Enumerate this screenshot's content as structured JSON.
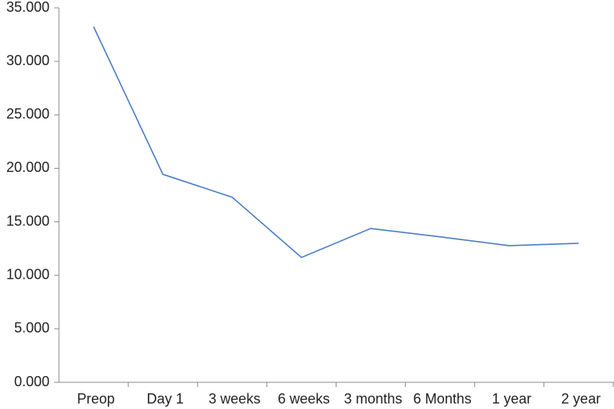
{
  "chart_data": {
    "type": "line",
    "categories": [
      "Preop",
      "Day 1",
      "3 weeks",
      "6 weeks",
      "3 months",
      "6 Months",
      "1 year",
      "2 year"
    ],
    "series": [
      {
        "color": "#4a7cc4",
        "values": [
          33.24,
          19.44,
          17.3,
          11.67,
          14.38,
          13.6,
          12.77,
          12.99
        ]
      }
    ],
    "ylim": [
      0,
      35
    ],
    "yticks": [
      {
        "value": 0,
        "label": "0.000"
      },
      {
        "value": 5,
        "label": "5.000"
      },
      {
        "value": 10,
        "label": "10.000"
      },
      {
        "value": 15,
        "label": "15.000"
      },
      {
        "value": 20,
        "label": "20.000"
      },
      {
        "value": 25,
        "label": "25.000"
      },
      {
        "value": 30,
        "label": "30.000"
      },
      {
        "value": 35,
        "label": "35.000"
      }
    ],
    "grid": false
  }
}
